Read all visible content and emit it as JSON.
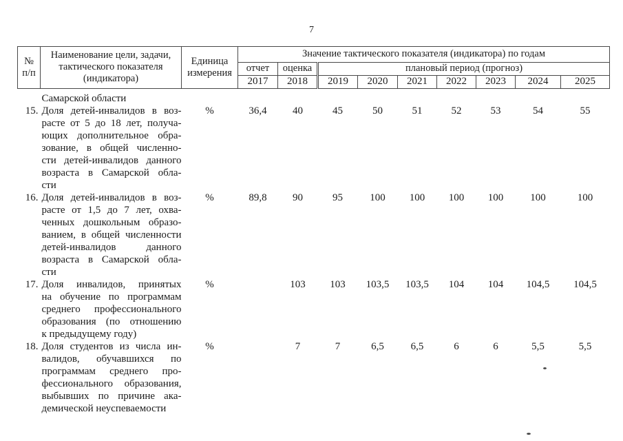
{
  "page": {
    "number": "7"
  },
  "table": {
    "header": {
      "col_num": "№\nп/п",
      "col_name": "Наименование цели, задачи,\nтактического показателя\n(индикатора)",
      "col_unit": "Единица\nизмерения",
      "col_values": "Значение тактического показателя (индикатора) по годам",
      "col_report": "отчет",
      "col_estimate": "оценка",
      "col_plan": "плановый период (прогноз)",
      "years": [
        "2017",
        "2018",
        "2019",
        "2020",
        "2021",
        "2022",
        "2023",
        "2024",
        "2025"
      ]
    },
    "rows": [
      {
        "num": "",
        "unit": "",
        "name_lines": [
          "Самарской области"
        ],
        "values": [
          "",
          "",
          "",
          "",
          "",
          "",
          "",
          "",
          ""
        ]
      },
      {
        "num": "15.",
        "unit": "%",
        "name_lines": [
          "Доля детей-инвалидов в воз-",
          "расте от 5 до 18 лет, получа-",
          "ющих дополнительное обра-",
          "зование, в общей численно-",
          "сти детей-инвалидов данного",
          "возраста в Самарской обла-",
          "сти"
        ],
        "values": [
          "36,4",
          "40",
          "45",
          "50",
          "51",
          "52",
          "53",
          "54",
          "55"
        ]
      },
      {
        "num": "16.",
        "unit": "%",
        "name_lines": [
          "Доля детей-инвалидов в воз-",
          "расте от 1,5 до 7 лет, охва-",
          "ченных дошкольным образо-",
          "ванием, в общей численности",
          "детей-инвалидов данного",
          "возраста в Самарской обла-",
          "сти"
        ],
        "values": [
          "89,8",
          "90",
          "95",
          "100",
          "100",
          "100",
          "100",
          "100",
          "100"
        ]
      },
      {
        "num": "17.",
        "unit": "%",
        "name_lines": [
          "Доля инвалидов, принятых",
          "на обучение по программам",
          "среднего профессионального",
          "образования (по отношению",
          "к предыдущему году)"
        ],
        "values": [
          "",
          "103",
          "103",
          "103,5",
          "103,5",
          "104",
          "104",
          "104,5",
          "104,5"
        ]
      },
      {
        "num": "18.",
        "unit": "%",
        "name_lines": [
          "Доля студентов из числа ин-",
          "валидов, обучавшихся по",
          "программам среднего про-",
          "фессионального образования,",
          "выбывших по причине ака-",
          "демической неуспеваемости"
        ],
        "values": [
          "",
          "7",
          "7",
          "6,5",
          "6,5",
          "6",
          "6",
          "5,5",
          "5,5"
        ]
      }
    ]
  }
}
